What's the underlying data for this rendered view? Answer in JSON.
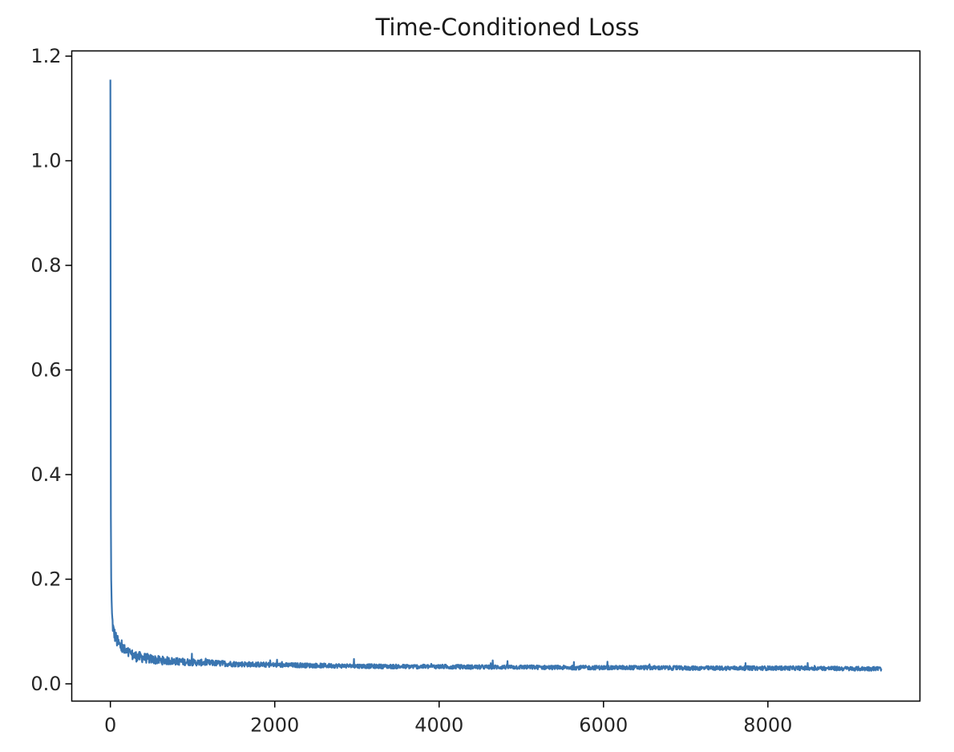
{
  "chart_data": {
    "type": "line",
    "title": "Time-Conditioned Loss",
    "xlabel": "",
    "ylabel": "",
    "xlim": [
      -470,
      9850
    ],
    "ylim": [
      -0.033,
      1.21
    ],
    "x_ticks": [
      0,
      2000,
      4000,
      6000,
      8000
    ],
    "x_tick_labels": [
      "0",
      "2000",
      "4000",
      "6000",
      "8000"
    ],
    "y_ticks": [
      0.0,
      0.2,
      0.4,
      0.6,
      0.8,
      1.0,
      1.2
    ],
    "y_tick_labels": [
      "0.0",
      "0.2",
      "0.4",
      "0.6",
      "0.8",
      "1.0",
      "1.2"
    ],
    "grid": false,
    "legend": "none",
    "series": [
      {
        "color": "#3a75b0",
        "x": [
          0,
          3,
          6,
          10,
          15,
          20,
          30,
          40,
          60,
          80,
          100,
          130,
          160,
          200,
          250,
          300,
          400,
          500,
          600,
          800,
          1000,
          1200,
          1500,
          1800,
          2000,
          2500,
          3000,
          3500,
          4000,
          4500,
          5000,
          5500,
          6000,
          6500,
          7000,
          7500,
          8000,
          8500,
          9000,
          9380
        ],
        "values": [
          1.155,
          0.7,
          0.32,
          0.2,
          0.16,
          0.13,
          0.11,
          0.1,
          0.09,
          0.082,
          0.076,
          0.07,
          0.065,
          0.06,
          0.056,
          0.053,
          0.05,
          0.047,
          0.045,
          0.043,
          0.041,
          0.04,
          0.038,
          0.037,
          0.036,
          0.035,
          0.034,
          0.033,
          0.033,
          0.032,
          0.032,
          0.031,
          0.031,
          0.031,
          0.03,
          0.03,
          0.03,
          0.03,
          0.029,
          0.029
        ],
        "noise_amplitude": 0.004
      }
    ]
  }
}
